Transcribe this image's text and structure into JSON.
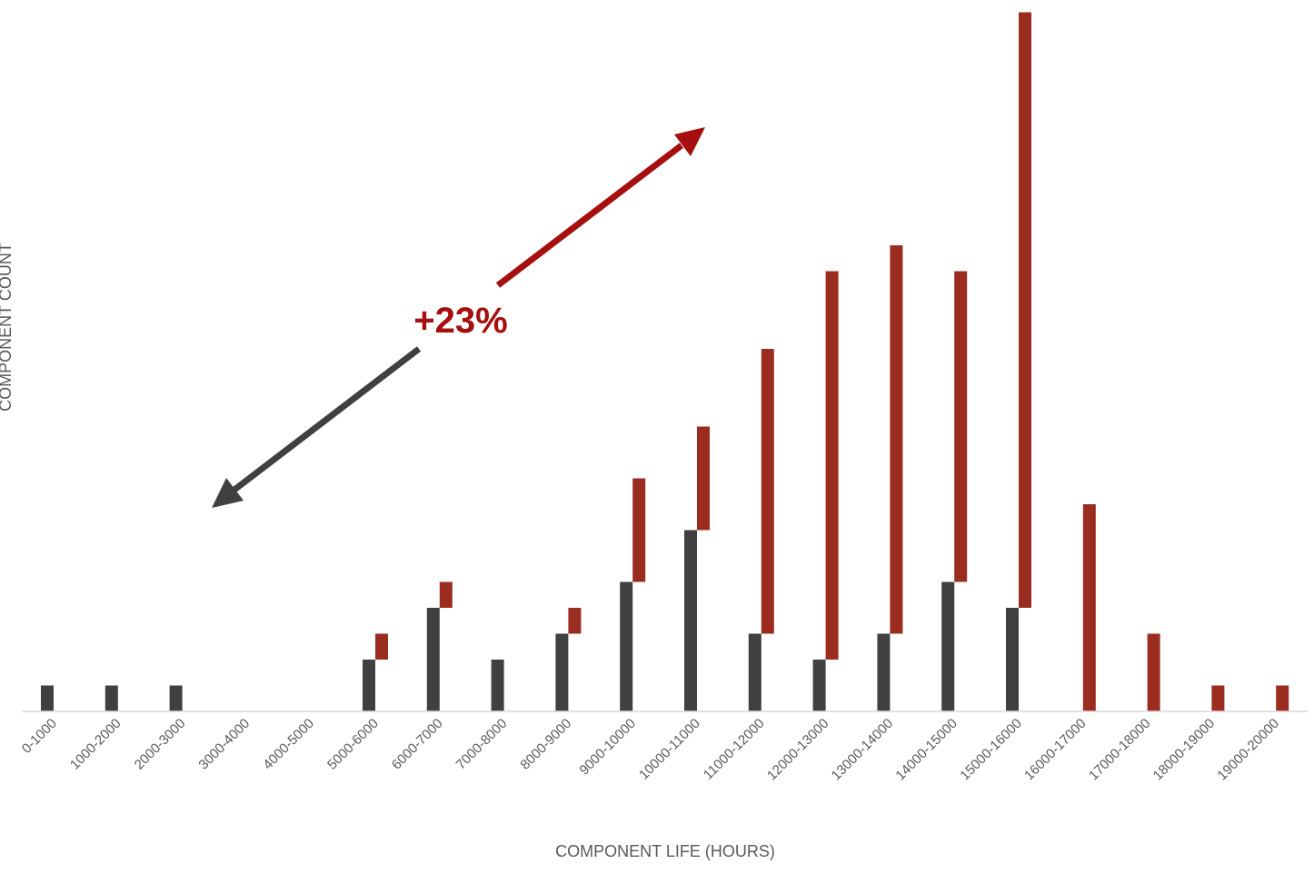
{
  "chart_data": {
    "type": "bar",
    "xlabel": "COMPONENT LIFE (HOURS)",
    "ylabel": "COMPONENT COUNT",
    "categories": [
      "0-1000",
      "1000-2000",
      "2000-3000",
      "3000-4000",
      "4000-5000",
      "5000-6000",
      "6000-7000",
      "7000-8000",
      "8000-9000",
      "9000-10000",
      "10000-11000",
      "11000-12000",
      "12000-13000",
      "13000-14000",
      "14000-15000",
      "15000-16000",
      "16000-17000",
      "17000-18000",
      "18000-19000",
      "19000-20000"
    ],
    "series": [
      {
        "values": [
          1,
          1,
          1,
          0,
          0,
          2,
          4,
          2,
          3,
          5,
          7,
          3,
          2,
          3,
          5,
          4,
          0,
          0,
          0,
          0
        ],
        "color": "#404040"
      },
      {
        "values": [
          0,
          0,
          0,
          0,
          0,
          1,
          1,
          0,
          1,
          4,
          4,
          11,
          15,
          15,
          12,
          23,
          8,
          3,
          1,
          1
        ],
        "color": "#9B2D20"
      }
    ],
    "annotation": {
      "text": "+23%",
      "color": "#A50F0F"
    },
    "grid": false
  }
}
